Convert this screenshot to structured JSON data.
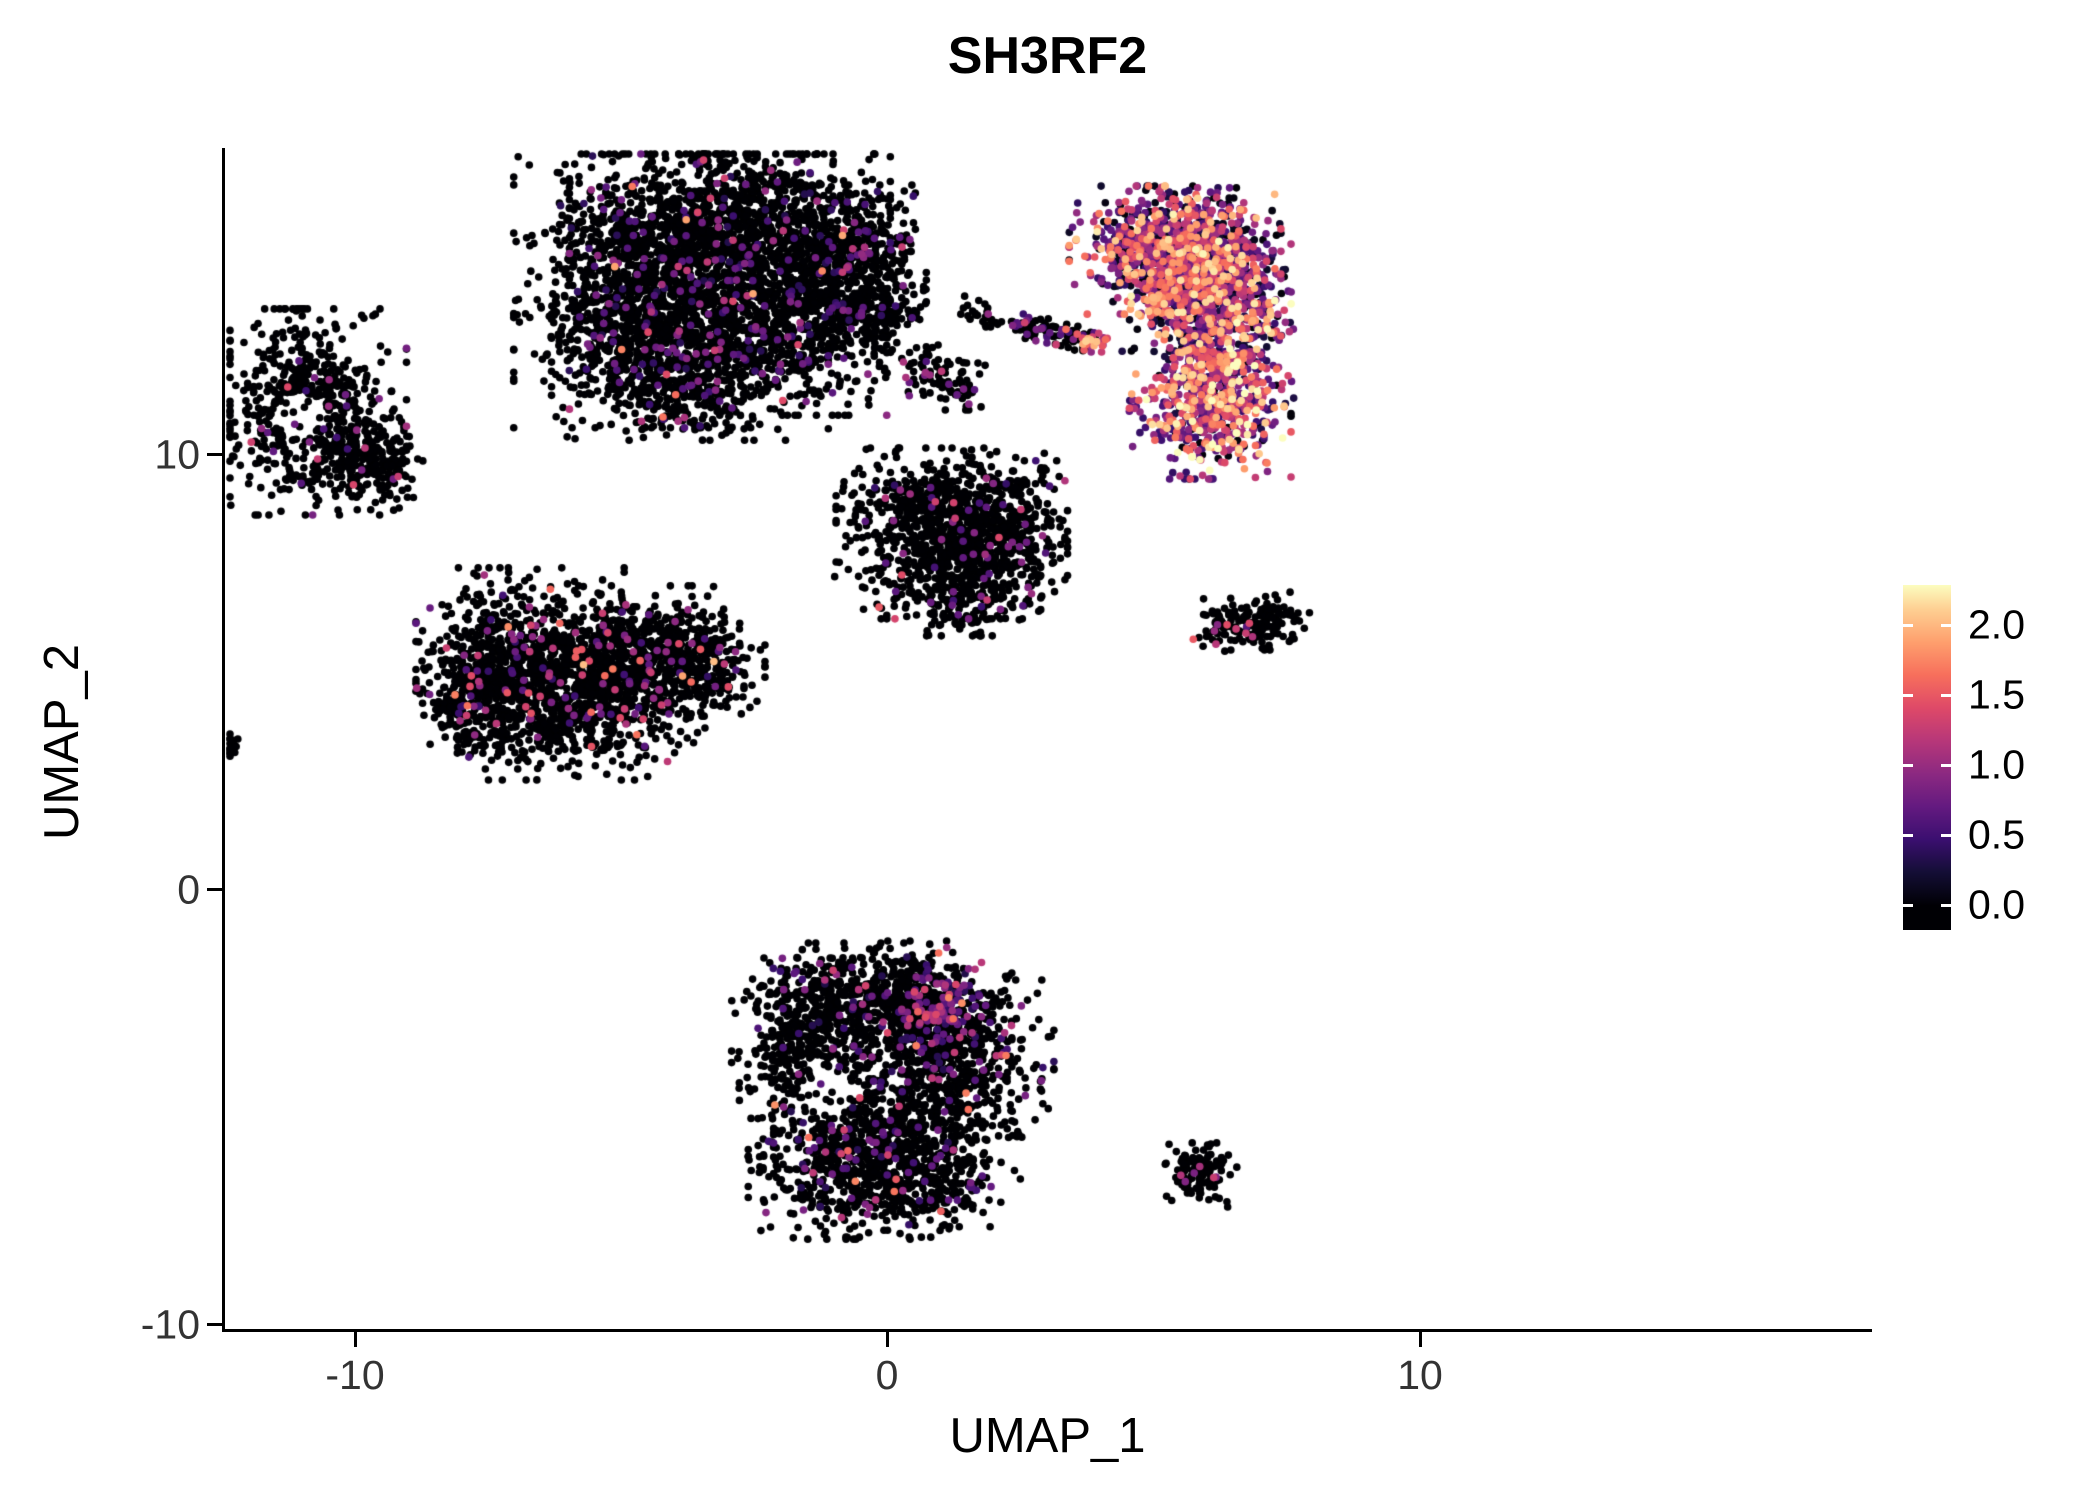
{
  "chart_data": {
    "type": "scatter",
    "title": "SH3RF2",
    "xlabel": "UMAP_1",
    "ylabel": "UMAP_2",
    "xlim": [
      -12.5,
      18.5
    ],
    "ylim": [
      -10.1,
      17.0
    ],
    "grid": false,
    "legend_position": "right",
    "x_ticks": [
      {
        "value": -10,
        "label": "-10"
      },
      {
        "value": 0,
        "label": "0"
      },
      {
        "value": 10,
        "label": "10"
      }
    ],
    "y_ticks": [
      {
        "value": 10,
        "label": "10"
      },
      {
        "value": 0,
        "label": "0"
      },
      {
        "value": -10,
        "label": "-10"
      }
    ],
    "colorbar": {
      "labels": [
        "2.0",
        "1.5",
        "1.0",
        "0.5",
        "0.0"
      ],
      "values": [
        2.0,
        1.5,
        1.0,
        0.5,
        0.0
      ],
      "vmin": 0.0,
      "vmax": 2.3,
      "colormap": "magma",
      "stops": [
        "#000004",
        "#140e36",
        "#3b0f70",
        "#641a80",
        "#8c2981",
        "#b73779",
        "#de4968",
        "#f76f5c",
        "#fe9f6d",
        "#fecf92",
        "#fcfdbf"
      ]
    },
    "point_radius_px": 3.8,
    "seed": 20240601,
    "clusters": [
      {
        "name": "top-center-large",
        "count": 4200,
        "blobs": [
          {
            "x": -4.65,
            "y": 13.8,
            "sx": 1.03,
            "sy": 1.38,
            "w": 1.0
          },
          {
            "x": -2.96,
            "y": 15.17,
            "sx": 1.31,
            "sy": 1.03,
            "w": 1.0
          },
          {
            "x": -1.64,
            "y": 13.56,
            "sx": 1.03,
            "sy": 1.15,
            "w": 0.85
          },
          {
            "x": -3.71,
            "y": 12.18,
            "sx": 1.13,
            "sy": 0.8,
            "w": 0.7
          },
          {
            "x": -0.61,
            "y": 14.71,
            "sx": 0.56,
            "sy": 0.57,
            "w": 0.22
          },
          {
            "x": -0.33,
            "y": 13.33,
            "sx": 0.47,
            "sy": 0.46,
            "w": 0.15
          }
        ],
        "values": [
          {
            "p": 0.925,
            "range": [
              0,
              0
            ]
          },
          {
            "p": 0.058,
            "range": [
              0.3,
              0.9
            ]
          },
          {
            "p": 0.015,
            "range": [
              0.9,
              1.4
            ]
          },
          {
            "p": 0.002,
            "range": [
              1.5,
              1.9
            ]
          }
        ]
      },
      {
        "name": "left-ring",
        "count": 750,
        "blobs": [
          {
            "x": -10.85,
            "y": 10.99,
            "sx": 0.79,
            "sy": 1.03,
            "w": 1.0
          },
          {
            "x": -9.6,
            "y": 9.8,
            "sx": 0.38,
            "sy": 0.46,
            "w": 0.3
          }
        ],
        "hole": {
          "x": -11.05,
          "y": 10.9,
          "r": 0.52,
          "reject": 0.85
        },
        "values": [
          {
            "p": 0.97,
            "range": [
              0,
              0
            ]
          },
          {
            "p": 0.025,
            "range": [
              0.4,
              1.0
            ]
          },
          {
            "p": 0.005,
            "range": [
              1.0,
              1.4
            ]
          }
        ]
      },
      {
        "name": "left-speck",
        "count": 16,
        "blobs": [
          {
            "x": -12.35,
            "y": 3.33,
            "sx": 0.13,
            "sy": 0.14,
            "w": 1
          }
        ],
        "values": [
          {
            "p": 1.0,
            "range": [
              0,
              0
            ]
          }
        ]
      },
      {
        "name": "mid-left",
        "count": 2300,
        "blobs": [
          {
            "x": -6.9,
            "y": 5.29,
            "sx": 0.85,
            "sy": 0.92,
            "w": 1.0
          },
          {
            "x": -5.59,
            "y": 4.37,
            "sx": 0.94,
            "sy": 0.8,
            "w": 1.0
          },
          {
            "x": -7.65,
            "y": 4.37,
            "sx": 0.47,
            "sy": 0.69,
            "w": 0.5
          },
          {
            "x": -4.65,
            "y": 5.52,
            "sx": 0.85,
            "sy": 0.64,
            "w": 0.8
          },
          {
            "x": -3.52,
            "y": 5.17,
            "sx": 0.53,
            "sy": 0.51,
            "w": 0.35
          }
        ],
        "values": [
          {
            "p": 0.93,
            "range": [
              0,
              0
            ]
          },
          {
            "p": 0.04,
            "range": [
              0.4,
              1.0
            ]
          },
          {
            "p": 0.025,
            "range": [
              1.0,
              1.6
            ]
          },
          {
            "p": 0.005,
            "range": [
              1.6,
              2.0
            ]
          }
        ]
      },
      {
        "name": "center-right",
        "count": 1350,
        "blobs": [
          {
            "x": 0.99,
            "y": 8.85,
            "sx": 0.85,
            "sy": 0.57,
            "w": 1.0
          },
          {
            "x": 1.17,
            "y": 7.82,
            "sx": 0.94,
            "sy": 0.69,
            "w": 1.0
          },
          {
            "x": 1.36,
            "y": 6.9,
            "sx": 0.66,
            "sy": 0.46,
            "w": 0.55
          },
          {
            "x": 2.3,
            "y": 8.28,
            "sx": 0.47,
            "sy": 0.69,
            "w": 0.5
          }
        ],
        "values": [
          {
            "p": 0.955,
            "range": [
              0,
              0
            ]
          },
          {
            "p": 0.035,
            "range": [
              0.4,
              1.0
            ]
          },
          {
            "p": 0.01,
            "range": [
              1.0,
              1.6
            ]
          }
        ]
      },
      {
        "name": "tiny-pair",
        "count": 26,
        "blobs": [
          {
            "x": 1.51,
            "y": 13.33,
            "sx": 0.15,
            "sy": 0.14,
            "w": 1
          },
          {
            "x": 1.92,
            "y": 13.15,
            "sx": 0.13,
            "sy": 0.14,
            "w": 1
          }
        ],
        "values": [
          {
            "p": 0.88,
            "range": [
              0,
              0
            ]
          },
          {
            "p": 0.12,
            "range": [
              0.9,
              1.4
            ]
          }
        ]
      },
      {
        "name": "streak",
        "count": 90,
        "blobs": [
          {
            "x": 2.58,
            "y": 12.92,
            "sx": 0.2,
            "sy": 0.14,
            "w": 1
          },
          {
            "x": 3.05,
            "y": 12.81,
            "sx": 0.2,
            "sy": 0.14,
            "w": 1
          },
          {
            "x": 3.45,
            "y": 12.72,
            "sx": 0.2,
            "sy": 0.14,
            "w": 1
          }
        ],
        "values": [
          {
            "p": 0.7,
            "range": [
              0,
              0
            ]
          },
          {
            "p": 0.25,
            "range": [
              0.4,
              1.0
            ]
          },
          {
            "p": 0.05,
            "range": [
              1.2,
              1.6
            ]
          }
        ]
      },
      {
        "name": "streak-hot-end",
        "count": 32,
        "blobs": [
          {
            "x": 3.92,
            "y": 12.62,
            "sx": 0.17,
            "sy": 0.11,
            "w": 1
          }
        ],
        "values": [
          {
            "p": 0.15,
            "range": [
              0,
              0
            ]
          },
          {
            "p": 0.35,
            "range": [
              0.8,
              1.4
            ]
          },
          {
            "p": 0.5,
            "range": [
              1.4,
              2.1
            ]
          }
        ]
      },
      {
        "name": "small-mid",
        "count": 95,
        "blobs": [
          {
            "x": 0.89,
            "y": 11.84,
            "sx": 0.41,
            "sy": 0.3,
            "w": 1
          },
          {
            "x": 1.32,
            "y": 11.45,
            "sx": 0.19,
            "sy": 0.18,
            "w": 0.5
          }
        ],
        "values": [
          {
            "p": 0.86,
            "range": [
              0,
              0
            ]
          },
          {
            "p": 0.12,
            "range": [
              0.6,
              1.2
            ]
          },
          {
            "p": 0.02,
            "range": [
              1.3,
              1.6
            ]
          }
        ]
      },
      {
        "name": "right-crescent-high-expression",
        "count": 2400,
        "blobs": [
          {
            "x": 4.93,
            "y": 14.71,
            "sx": 0.66,
            "sy": 0.64,
            "w": 1.0
          },
          {
            "x": 5.87,
            "y": 14.83,
            "sx": 0.66,
            "sy": 0.57,
            "w": 0.9
          },
          {
            "x": 6.43,
            "y": 13.56,
            "sx": 0.5,
            "sy": 0.69,
            "w": 0.8,
            "boost": 0.1
          },
          {
            "x": 6.34,
            "y": 12.18,
            "sx": 0.56,
            "sy": 0.69,
            "w": 0.8,
            "boost": 0.2
          },
          {
            "x": 6.06,
            "y": 10.92,
            "sx": 0.66,
            "sy": 0.64,
            "w": 0.9,
            "boost": 0.35
          },
          {
            "x": 5.4,
            "y": 13.56,
            "sx": 0.47,
            "sy": 0.57,
            "w": 0.5
          }
        ],
        "values": [
          {
            "p": 0.24,
            "range": [
              0,
              0.12
            ]
          },
          {
            "p": 0.16,
            "range": [
              0.15,
              0.5
            ]
          },
          {
            "p": 0.3,
            "range": [
              0.5,
              1.1
            ]
          },
          {
            "p": 0.2,
            "range": [
              1.1,
              1.7
            ]
          },
          {
            "p": 0.09,
            "range": [
              1.7,
              2.1
            ]
          },
          {
            "p": 0.01,
            "range": [
              2.1,
              2.3
            ]
          }
        ]
      },
      {
        "name": "right-wedge",
        "count": 180,
        "blobs": [
          {
            "x": 6.34,
            "y": 6.02,
            "sx": 0.26,
            "sy": 0.23,
            "w": 1.0
          },
          {
            "x": 6.81,
            "y": 6.16,
            "sx": 0.38,
            "sy": 0.28,
            "w": 1.2
          },
          {
            "x": 7.28,
            "y": 6.25,
            "sx": 0.28,
            "sy": 0.32,
            "w": 0.8
          }
        ],
        "colored_blob": {
          "x": 6.3,
          "y": 6.0,
          "sx": 0.18,
          "sy": 0.15,
          "frac": 0.5
        },
        "values": [
          {
            "p": 0.91,
            "range": [
              0,
              0
            ]
          },
          {
            "p": 0.07,
            "range": [
              0.6,
              1.2
            ]
          },
          {
            "p": 0.02,
            "range": [
              1.2,
              1.5
            ]
          }
        ]
      },
      {
        "name": "bottom-center",
        "count": 2800,
        "blobs": [
          {
            "x": -1.64,
            "y": -3.68,
            "sx": 0.56,
            "sy": 0.92,
            "w": 0.7
          },
          {
            "x": -0.61,
            "y": -2.53,
            "sx": 0.85,
            "sy": 0.57,
            "w": 0.9
          },
          {
            "x": 0.61,
            "y": -2.76,
            "sx": 0.75,
            "sy": 0.69,
            "w": 0.9
          },
          {
            "x": 1.17,
            "y": -3.91,
            "sx": 0.85,
            "sy": 0.8,
            "w": 1.0
          },
          {
            "x": 0.23,
            "y": -5.29,
            "sx": 1.03,
            "sy": 0.8,
            "w": 1.0
          },
          {
            "x": -0.89,
            "y": -6.44,
            "sx": 0.75,
            "sy": 0.69,
            "w": 0.8
          },
          {
            "x": 0.61,
            "y": -6.67,
            "sx": 0.66,
            "sy": 0.57,
            "w": 0.7
          }
        ],
        "hole": {
          "x": -1.08,
          "y": -4.6,
          "r": 0.55,
          "reject": 0.8
        },
        "colored_blob": {
          "x": 1.05,
          "y": -2.7,
          "sx": 0.5,
          "sy": 0.45,
          "frac": 0.35
        },
        "values": [
          {
            "p": 0.89,
            "range": [
              0,
              0
            ]
          },
          {
            "p": 0.08,
            "range": [
              0.3,
              0.9
            ]
          },
          {
            "p": 0.025,
            "range": [
              0.9,
              1.4
            ]
          },
          {
            "p": 0.005,
            "range": [
              1.4,
              1.8
            ]
          }
        ]
      },
      {
        "name": "bottom-right-speck",
        "count": 115,
        "blobs": [
          {
            "x": 5.87,
            "y": -6.55,
            "sx": 0.3,
            "sy": 0.32,
            "w": 1
          }
        ],
        "values": [
          {
            "p": 0.93,
            "range": [
              0,
              0
            ]
          },
          {
            "p": 0.07,
            "range": [
              0.8,
              1.4
            ]
          }
        ]
      }
    ]
  }
}
